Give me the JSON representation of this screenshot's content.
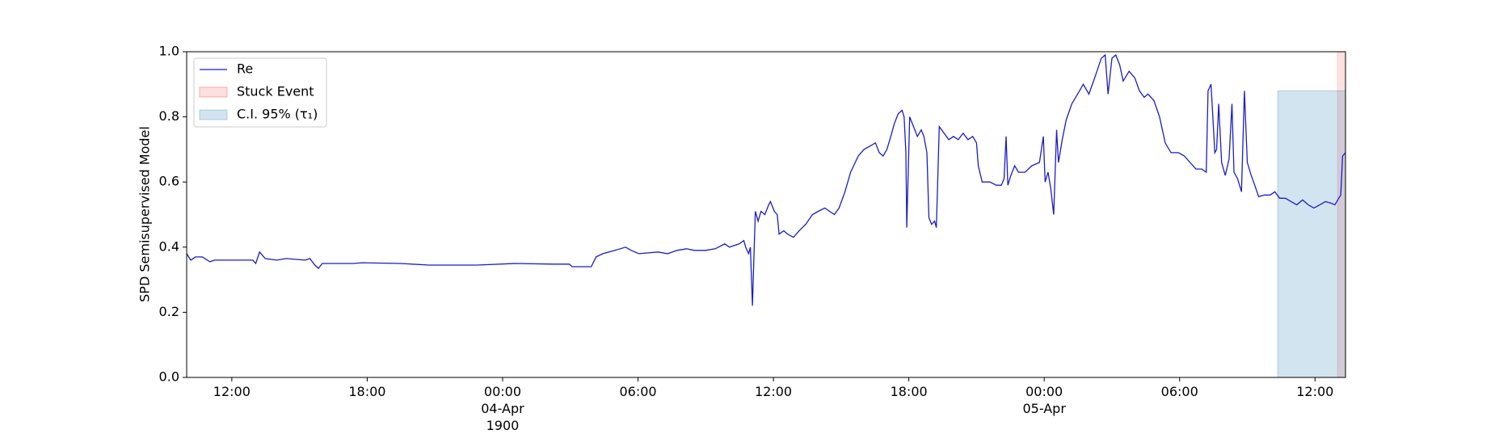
{
  "chart_data": {
    "type": "line",
    "y_label": "SPD Semisupervised Model",
    "xlim": [
      10.0,
      61.35
    ],
    "xticks": [
      {
        "value": 12,
        "label": "12:00"
      },
      {
        "value": 18,
        "label": "18:00"
      },
      {
        "value": 24,
        "label": "00:00\n04-Apr\n1900"
      },
      {
        "value": 30,
        "label": "06:00"
      },
      {
        "value": 36,
        "label": "12:00"
      },
      {
        "value": 42,
        "label": "18:00"
      },
      {
        "value": 48,
        "label": "00:00\n05-Apr"
      },
      {
        "value": 54,
        "label": "06:00"
      },
      {
        "value": 60,
        "label": "12:00"
      }
    ],
    "ylim": [
      0,
      1
    ],
    "yticks": [
      {
        "value": 0,
        "label": "0.0"
      },
      0.2,
      0.4,
      0.6,
      0.8,
      {
        "value": 1,
        "label": "1.0"
      }
    ],
    "legend": "upper left",
    "series": [
      {
        "name": "Re",
        "color": "#1c1cc8",
        "x": [
          10.0,
          10.18,
          10.39,
          10.69,
          11.03,
          11.24,
          12.93,
          13.06,
          13.23,
          13.48,
          13.99,
          14.41,
          15.25,
          15.46,
          15.68,
          15.84,
          16.01,
          17.37,
          17.79,
          19.48,
          20.75,
          22.86,
          24.55,
          26.24,
          26.96,
          27.08,
          27.93,
          28.14,
          28.44,
          28.98,
          29.45,
          29.7,
          30.04,
          30.89,
          31.31,
          31.73,
          32.15,
          32.49,
          33.0,
          33.42,
          33.84,
          34.05,
          34.48,
          34.69,
          34.77,
          34.9,
          34.98,
          35.07,
          35.2,
          35.32,
          35.45,
          35.62,
          35.79,
          35.87,
          36.04,
          36.17,
          36.25,
          36.46,
          36.63,
          36.89,
          37.14,
          37.43,
          37.73,
          37.98,
          38.28,
          38.49,
          38.7,
          38.91,
          39.17,
          39.42,
          39.76,
          40.01,
          40.27,
          40.52,
          40.69,
          40.86,
          41.03,
          41.2,
          41.36,
          41.53,
          41.7,
          41.79,
          41.87,
          41.91,
          42.04,
          42.21,
          42.38,
          42.55,
          42.67,
          42.8,
          42.89,
          43.01,
          43.14,
          43.22,
          43.35,
          43.56,
          43.77,
          43.98,
          44.19,
          44.41,
          44.62,
          44.83,
          45.0,
          45.08,
          45.25,
          45.59,
          45.88,
          46.1,
          46.22,
          46.31,
          46.39,
          46.52,
          46.69,
          46.86,
          47.15,
          47.45,
          47.79,
          47.96,
          48.04,
          48.17,
          48.29,
          48.42,
          48.55,
          48.63,
          48.8,
          48.97,
          49.22,
          49.48,
          49.73,
          49.98,
          50.24,
          50.53,
          50.7,
          50.83,
          51.0,
          51.17,
          51.34,
          51.5,
          51.76,
          52.01,
          52.22,
          52.43,
          52.6,
          52.86,
          53.11,
          53.36,
          53.62,
          53.95,
          54.21,
          54.46,
          54.72,
          54.97,
          55.18,
          55.26,
          55.39,
          55.56,
          55.64,
          55.73,
          55.86,
          56.02,
          56.19,
          56.32,
          56.41,
          56.57,
          56.74,
          56.87,
          57.0,
          57.17,
          57.33,
          57.5,
          57.76,
          58.01,
          58.22,
          58.43,
          58.69,
          58.94,
          59.19,
          59.45,
          59.7,
          59.95,
          60.21,
          60.46,
          60.71,
          60.88,
          61.05,
          61.14,
          61.22,
          61.35
        ],
        "values": [
          0.38,
          0.36,
          0.37,
          0.37,
          0.355,
          0.36,
          0.36,
          0.35,
          0.385,
          0.365,
          0.36,
          0.365,
          0.36,
          0.365,
          0.345,
          0.335,
          0.35,
          0.35,
          0.352,
          0.35,
          0.345,
          0.345,
          0.35,
          0.348,
          0.348,
          0.34,
          0.34,
          0.37,
          0.38,
          0.39,
          0.4,
          0.39,
          0.38,
          0.385,
          0.38,
          0.39,
          0.395,
          0.39,
          0.39,
          0.395,
          0.41,
          0.4,
          0.41,
          0.42,
          0.4,
          0.38,
          0.4,
          0.22,
          0.51,
          0.48,
          0.51,
          0.5,
          0.53,
          0.54,
          0.51,
          0.5,
          0.44,
          0.45,
          0.44,
          0.43,
          0.45,
          0.47,
          0.5,
          0.51,
          0.52,
          0.51,
          0.5,
          0.52,
          0.57,
          0.63,
          0.68,
          0.7,
          0.71,
          0.72,
          0.69,
          0.68,
          0.7,
          0.74,
          0.78,
          0.81,
          0.82,
          0.8,
          0.69,
          0.46,
          0.8,
          0.77,
          0.74,
          0.76,
          0.74,
          0.69,
          0.49,
          0.47,
          0.48,
          0.46,
          0.77,
          0.75,
          0.73,
          0.74,
          0.73,
          0.75,
          0.73,
          0.74,
          0.72,
          0.65,
          0.6,
          0.6,
          0.59,
          0.59,
          0.61,
          0.74,
          0.59,
          0.62,
          0.65,
          0.63,
          0.63,
          0.65,
          0.66,
          0.74,
          0.6,
          0.63,
          0.58,
          0.5,
          0.76,
          0.66,
          0.73,
          0.79,
          0.84,
          0.87,
          0.9,
          0.87,
          0.92,
          0.98,
          0.99,
          0.87,
          0.98,
          0.99,
          0.96,
          0.91,
          0.94,
          0.92,
          0.88,
          0.86,
          0.87,
          0.85,
          0.8,
          0.72,
          0.69,
          0.69,
          0.68,
          0.66,
          0.64,
          0.64,
          0.63,
          0.88,
          0.9,
          0.69,
          0.7,
          0.84,
          0.66,
          0.62,
          0.67,
          0.84,
          0.63,
          0.61,
          0.57,
          0.88,
          0.66,
          0.62,
          0.59,
          0.555,
          0.56,
          0.56,
          0.57,
          0.55,
          0.55,
          0.54,
          0.53,
          0.545,
          0.53,
          0.52,
          0.53,
          0.54,
          0.535,
          0.53,
          0.55,
          0.56,
          0.68,
          0.69
        ]
      }
    ],
    "regions": [
      {
        "name": "Stuck Event",
        "color": "#ff0000",
        "x": [
          61.0,
          61.35
        ],
        "y": [
          0,
          1
        ]
      },
      {
        "name": "C.I. 95% (τ₁)",
        "color": "#1f77b4",
        "x": [
          58.35,
          61.35
        ],
        "y": [
          0,
          0.88
        ]
      }
    ]
  }
}
